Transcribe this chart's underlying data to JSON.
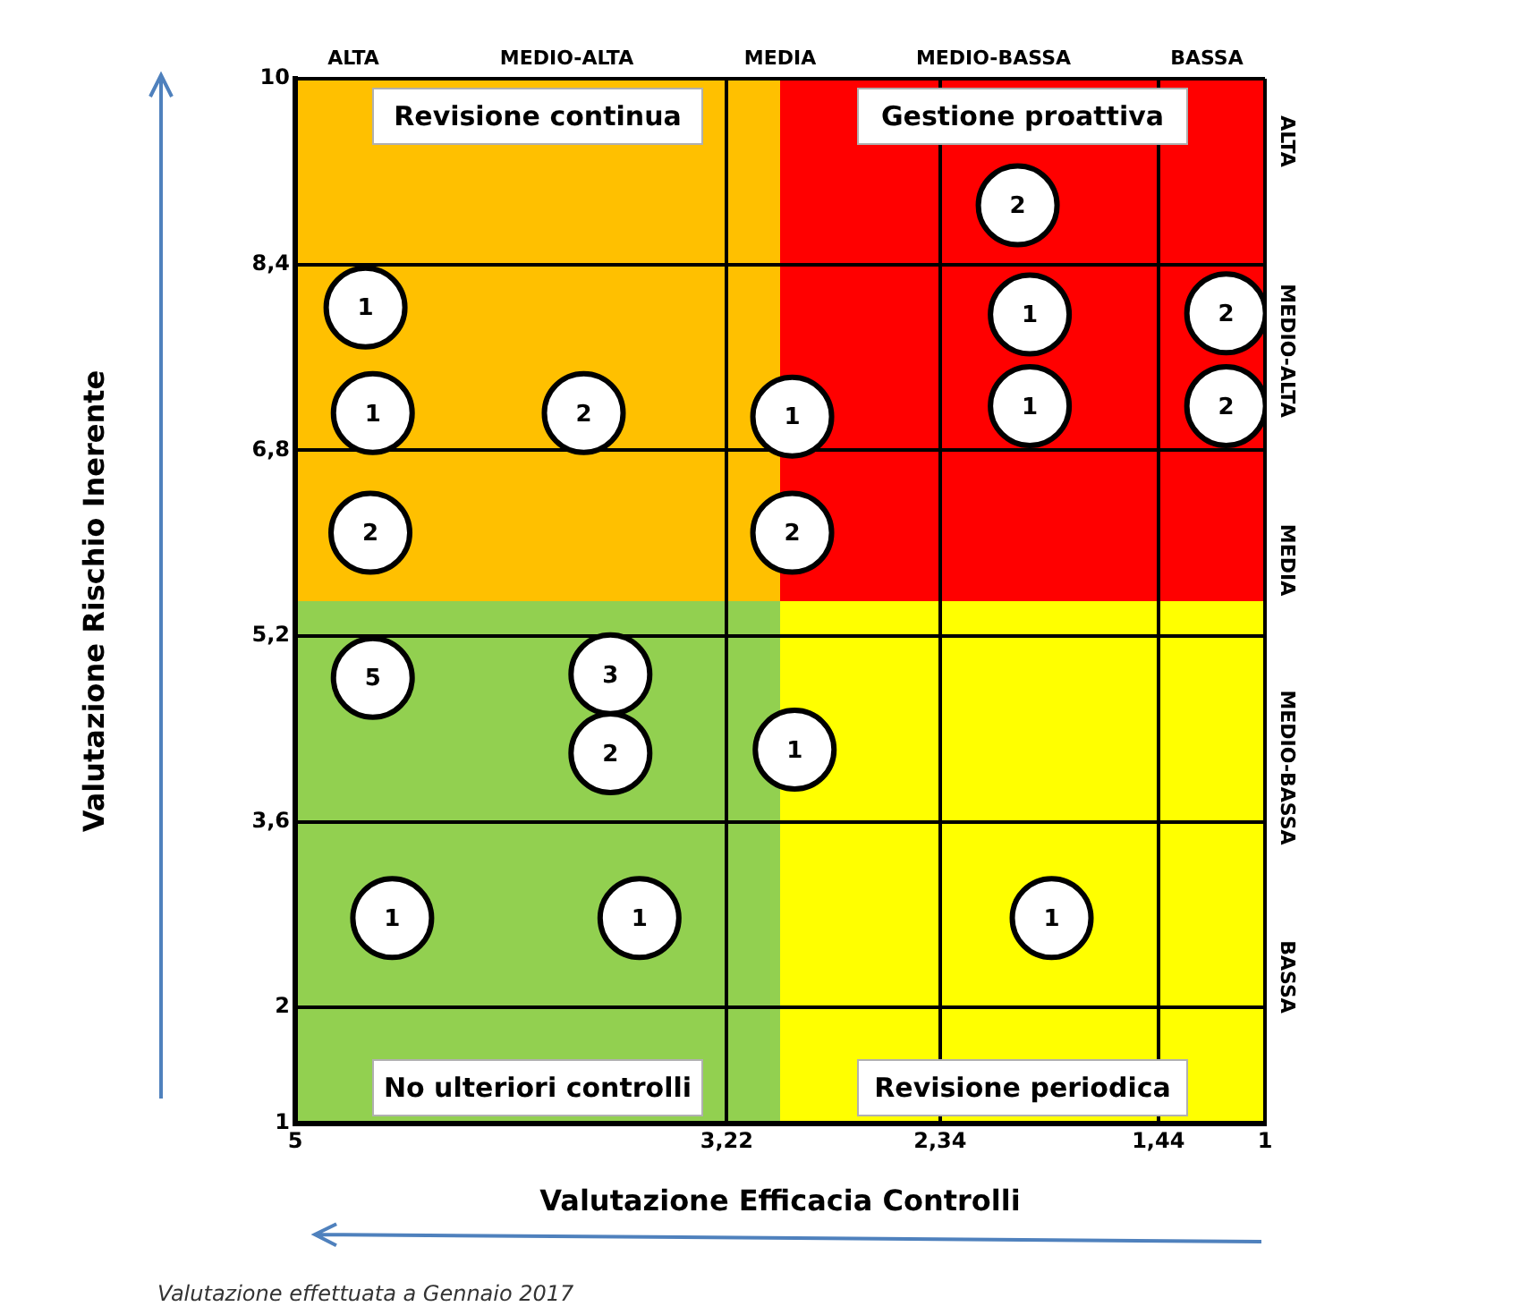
{
  "chart_data": {
    "type": "scatter",
    "xlabel": "Valutazione Efficacia Controlli",
    "ylabel": "Valutazione Rischio Inerente",
    "xlim": [
      5,
      1
    ],
    "xticks": [
      5,
      {
        "value": 3.22,
        "label": "3,22"
      },
      {
        "value": 2.34,
        "label": "2,34"
      },
      {
        "value": 1.44,
        "label": "1,44"
      },
      1
    ],
    "ylim": [
      1,
      10
    ],
    "yticks": [
      1,
      2,
      {
        "value": 3.6,
        "label": "3,6"
      },
      {
        "value": 5.2,
        "label": "5,2"
      },
      {
        "value": 6.8,
        "label": "6,8"
      },
      {
        "value": 8.4,
        "label": "8,4"
      },
      10
    ],
    "x": [
      4.71,
      4.68,
      3.81,
      2.95,
      4.69,
      2.95,
      4.68,
      3.7,
      3.7,
      2.94,
      4.6,
      3.58,
      2.02,
      1.97,
      1.97,
      1.16,
      1.16,
      1.88
    ],
    "values": [
      8.03,
      7.12,
      7.12,
      7.09,
      6.09,
      6.09,
      4.84,
      4.87,
      4.19,
      4.22,
      2.77,
      2.77,
      8.91,
      7.97,
      7.18,
      7.98,
      7.18,
      2.77
    ],
    "color": "#ffffff",
    "marker": "circle",
    "grid": true,
    "legend": false,
    "annotations": [
      "Revisione continua",
      "Gestione proattiva",
      "No ulteriori controlli",
      "Revisione periodica",
      "ALTA",
      "MEDIO-ALTA",
      "MEDIA",
      "MEDIO-BASSA",
      "BASSA",
      "ALTA",
      "MEDIO-ALTA",
      "MEDIA",
      "MEDIO-BASSA",
      "BASSA",
      "Valutazione effettuata a Gennaio 2017",
      {
        "text": "1",
        "x": 4.71,
        "y": 8.03
      },
      {
        "text": "1",
        "x": 4.68,
        "y": 7.12
      },
      {
        "text": "2",
        "x": 3.81,
        "y": 7.12
      },
      {
        "text": "1",
        "x": 2.95,
        "y": 7.09
      },
      {
        "text": "2",
        "x": 4.69,
        "y": 6.09
      },
      {
        "text": "2",
        "x": 2.95,
        "y": 6.09
      },
      {
        "text": "5",
        "x": 4.68,
        "y": 4.84
      },
      {
        "text": "3",
        "x": 3.7,
        "y": 4.87
      },
      {
        "text": "2",
        "x": 3.7,
        "y": 4.19
      },
      {
        "text": "1",
        "x": 2.94,
        "y": 4.22
      },
      {
        "text": "1",
        "x": 4.6,
        "y": 2.77
      },
      {
        "text": "1",
        "x": 3.58,
        "y": 2.77
      },
      {
        "text": "2",
        "x": 2.02,
        "y": 8.91
      },
      {
        "text": "1",
        "x": 1.97,
        "y": 7.97
      },
      {
        "text": "1",
        "x": 1.97,
        "y": 7.18
      },
      {
        "text": "2",
        "x": 1.16,
        "y": 7.98
      },
      {
        "text": "2",
        "x": 1.16,
        "y": 7.18
      },
      {
        "text": "1",
        "x": 1.88,
        "y": 2.77
      }
    ]
  }
}
